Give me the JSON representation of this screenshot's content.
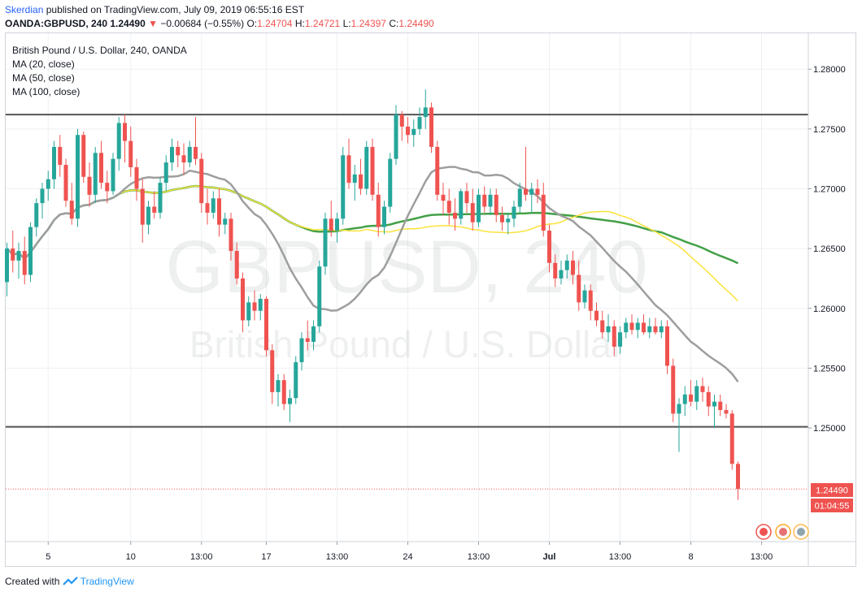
{
  "header": {
    "author": "Skerdian",
    "published": "published on TradingView.com, July 09, 2019 06:55:16 EST",
    "symbol": "OANDA:GBPUSD, 240",
    "last": "1.24490",
    "change": "−0.00684 (−0.55%)",
    "o_label": "O:",
    "o_value": "1.24704",
    "h_label": "H:",
    "h_value": "1.24721",
    "l_label": "L:",
    "l_value": "1.24397",
    "c_label": "C:",
    "c_value": "1.24490"
  },
  "legend": {
    "instrument": "British Pound / U.S. Dollar, 240, OANDA",
    "ma20": "MA (20, close)",
    "ma50": "MA (50, close)",
    "ma100": "MA (100, close)"
  },
  "watermark": {
    "line1": "GBPUSD, 240",
    "line2": "British Pound / U.S. Dollar"
  },
  "price_badge": {
    "price": "1.24490",
    "countdown": "01:04:55"
  },
  "footer": {
    "created_with": "Created with",
    "brand": "TradingView"
  },
  "colors": {
    "up": "#26a69a",
    "down": "#ef5350",
    "ma20": "#9e9e9e",
    "ma50": "#fbe23c",
    "ma100": "#43a047",
    "level": "#555555",
    "grid": "#eef0f3",
    "price_line": "#ef5350"
  },
  "chart_data": {
    "type": "candlestick",
    "instrument": "GBPUSD",
    "timeframe": "240",
    "y_ticks": [
      "1.28000",
      "1.27500",
      "1.27000",
      "1.26500",
      "1.26000",
      "1.25500",
      "1.25000"
    ],
    "ylim": [
      1.2405,
      1.283
    ],
    "x_ticks": [
      {
        "label": "5",
        "index": 7
      },
      {
        "label": "10",
        "index": 21
      },
      {
        "label": "13:00",
        "index": 33
      },
      {
        "label": "17",
        "index": 44
      },
      {
        "label": "13:00",
        "index": 56
      },
      {
        "label": "24",
        "index": 68
      },
      {
        "label": "13:00",
        "index": 80
      },
      {
        "label": "Jul",
        "index": 92
      },
      {
        "label": "13:00",
        "index": 104
      },
      {
        "label": "8",
        "index": 116
      },
      {
        "label": "13:00",
        "index": 128
      }
    ],
    "x_count": 130,
    "horizontal_levels": [
      1.2762,
      1.2501
    ],
    "last_price": 1.2449,
    "ohlc": [
      [
        1.2622,
        1.2655,
        1.261,
        1.265
      ],
      [
        1.265,
        1.2665,
        1.263,
        1.264
      ],
      [
        1.264,
        1.2655,
        1.2625,
        1.2648
      ],
      [
        1.2648,
        1.266,
        1.262,
        1.2628
      ],
      [
        1.2628,
        1.2672,
        1.2622,
        1.2668
      ],
      [
        1.2668,
        1.2692,
        1.266,
        1.2688
      ],
      [
        1.2688,
        1.2705,
        1.2675,
        1.27
      ],
      [
        1.27,
        1.2715,
        1.269,
        1.2708
      ],
      [
        1.2708,
        1.274,
        1.27,
        1.2735
      ],
      [
        1.2735,
        1.2745,
        1.271,
        1.272
      ],
      [
        1.272,
        1.2725,
        1.2685,
        1.269
      ],
      [
        1.269,
        1.2705,
        1.267,
        1.2675
      ],
      [
        1.2675,
        1.275,
        1.2668,
        1.2745
      ],
      [
        1.2745,
        1.2748,
        1.2705,
        1.271
      ],
      [
        1.271,
        1.2722,
        1.2685,
        1.2695
      ],
      [
        1.2695,
        1.2735,
        1.2688,
        1.273
      ],
      [
        1.273,
        1.274,
        1.27,
        1.2705
      ],
      [
        1.2705,
        1.2715,
        1.2688,
        1.2698
      ],
      [
        1.2698,
        1.273,
        1.2695,
        1.2725
      ],
      [
        1.2725,
        1.276,
        1.2715,
        1.2755
      ],
      [
        1.2755,
        1.2762,
        1.2722,
        1.274
      ],
      [
        1.274,
        1.2752,
        1.271,
        1.2718
      ],
      [
        1.2718,
        1.2725,
        1.269,
        1.27
      ],
      [
        1.27,
        1.2708,
        1.2655,
        1.267
      ],
      [
        1.267,
        1.269,
        1.2662,
        1.2685
      ],
      [
        1.2685,
        1.2698,
        1.2675,
        1.268
      ],
      [
        1.268,
        1.271,
        1.2675,
        1.2705
      ],
      [
        1.2705,
        1.2728,
        1.2698,
        1.2722
      ],
      [
        1.2722,
        1.2742,
        1.2715,
        1.2735
      ],
      [
        1.2735,
        1.274,
        1.2718,
        1.2728
      ],
      [
        1.2728,
        1.2738,
        1.2712,
        1.2722
      ],
      [
        1.2722,
        1.274,
        1.2718,
        1.2735
      ],
      [
        1.2735,
        1.276,
        1.272,
        1.2725
      ],
      [
        1.2725,
        1.273,
        1.268,
        1.2688
      ],
      [
        1.2688,
        1.27,
        1.267,
        1.268
      ],
      [
        1.268,
        1.2698,
        1.2675,
        1.2692
      ],
      [
        1.2692,
        1.27,
        1.266,
        1.267
      ],
      [
        1.267,
        1.268,
        1.2662,
        1.2675
      ],
      [
        1.2675,
        1.268,
        1.264,
        1.2648
      ],
      [
        1.2648,
        1.2655,
        1.262,
        1.2625
      ],
      [
        1.2625,
        1.263,
        1.258,
        1.259
      ],
      [
        1.259,
        1.261,
        1.2585,
        1.2605
      ],
      [
        1.2605,
        1.2615,
        1.259,
        1.2598
      ],
      [
        1.2598,
        1.2612,
        1.259,
        1.2608
      ],
      [
        1.2608,
        1.261,
        1.256,
        1.2565
      ],
      [
        1.2565,
        1.257,
        1.252,
        1.253
      ],
      [
        1.253,
        1.2545,
        1.2518,
        1.254
      ],
      [
        1.254,
        1.2545,
        1.2515,
        1.252
      ],
      [
        1.252,
        1.2532,
        1.2505,
        1.2525
      ],
      [
        1.2525,
        1.256,
        1.252,
        1.2555
      ],
      [
        1.2555,
        1.258,
        1.2548,
        1.2575
      ],
      [
        1.2575,
        1.259,
        1.2565,
        1.2572
      ],
      [
        1.2572,
        1.259,
        1.2565,
        1.2585
      ],
      [
        1.2585,
        1.264,
        1.258,
        1.2635
      ],
      [
        1.2635,
        1.268,
        1.2628,
        1.2675
      ],
      [
        1.2675,
        1.269,
        1.266,
        1.2665
      ],
      [
        1.2665,
        1.268,
        1.2655,
        1.2675
      ],
      [
        1.2675,
        1.2735,
        1.267,
        1.2728
      ],
      [
        1.2728,
        1.2742,
        1.27,
        1.2705
      ],
      [
        1.2705,
        1.272,
        1.269,
        1.2712
      ],
      [
        1.2712,
        1.2725,
        1.2695,
        1.27
      ],
      [
        1.27,
        1.274,
        1.2695,
        1.2735
      ],
      [
        1.2735,
        1.2742,
        1.269,
        1.2695
      ],
      [
        1.2695,
        1.2705,
        1.266,
        1.2668
      ],
      [
        1.2668,
        1.269,
        1.2662,
        1.2685
      ],
      [
        1.2685,
        1.273,
        1.268,
        1.2725
      ],
      [
        1.2725,
        1.277,
        1.272,
        1.2762
      ],
      [
        1.2762,
        1.2765,
        1.274,
        1.2752
      ],
      [
        1.2752,
        1.276,
        1.2738,
        1.2745
      ],
      [
        1.2745,
        1.2758,
        1.2735,
        1.275
      ],
      [
        1.275,
        1.2768,
        1.2745,
        1.276
      ],
      [
        1.276,
        1.2783,
        1.275,
        1.2768
      ],
      [
        1.2768,
        1.2772,
        1.273,
        1.2735
      ],
      [
        1.2735,
        1.274,
        1.269,
        1.2695
      ],
      [
        1.2695,
        1.2705,
        1.2678,
        1.269
      ],
      [
        1.269,
        1.27,
        1.267,
        1.268
      ],
      [
        1.268,
        1.2692,
        1.2665,
        1.2675
      ],
      [
        1.2675,
        1.27,
        1.267,
        1.2698
      ],
      [
        1.2698,
        1.2705,
        1.268,
        1.2688
      ],
      [
        1.2688,
        1.27,
        1.2665,
        1.2672
      ],
      [
        1.2672,
        1.27,
        1.2668,
        1.2695
      ],
      [
        1.2695,
        1.2702,
        1.268,
        1.2685
      ],
      [
        1.2685,
        1.27,
        1.2678,
        1.2695
      ],
      [
        1.2695,
        1.27,
        1.2672,
        1.2678
      ],
      [
        1.2678,
        1.2685,
        1.2665,
        1.2672
      ],
      [
        1.2672,
        1.268,
        1.2662,
        1.2675
      ],
      [
        1.2675,
        1.269,
        1.2668,
        1.2685
      ],
      [
        1.2685,
        1.2705,
        1.268,
        1.27
      ],
      [
        1.27,
        1.2735,
        1.269,
        1.2695
      ],
      [
        1.2695,
        1.2705,
        1.268,
        1.27
      ],
      [
        1.27,
        1.2708,
        1.2688,
        1.2695
      ],
      [
        1.2695,
        1.2705,
        1.266,
        1.2665
      ],
      [
        1.2665,
        1.267,
        1.263,
        1.2638
      ],
      [
        1.2638,
        1.2645,
        1.2618,
        1.2625
      ],
      [
        1.2625,
        1.264,
        1.262,
        1.2632
      ],
      [
        1.2632,
        1.2645,
        1.2625,
        1.264
      ],
      [
        1.264,
        1.2648,
        1.262,
        1.2628
      ],
      [
        1.2628,
        1.264,
        1.2598,
        1.2605
      ],
      [
        1.2605,
        1.262,
        1.26,
        1.2615
      ],
      [
        1.2615,
        1.262,
        1.259,
        1.2598
      ],
      [
        1.2598,
        1.2605,
        1.2585,
        1.259
      ],
      [
        1.259,
        1.2598,
        1.2575,
        1.258
      ],
      [
        1.258,
        1.2595,
        1.2572,
        1.2585
      ],
      [
        1.2585,
        1.259,
        1.256,
        1.2568
      ],
      [
        1.2568,
        1.2585,
        1.2562,
        1.258
      ],
      [
        1.258,
        1.2592,
        1.2575,
        1.2588
      ],
      [
        1.2588,
        1.2595,
        1.2578,
        1.2582
      ],
      [
        1.2582,
        1.2592,
        1.2575,
        1.2588
      ],
      [
        1.2588,
        1.2595,
        1.2578,
        1.258
      ],
      [
        1.258,
        1.2592,
        1.2575,
        1.2585
      ],
      [
        1.2585,
        1.2592,
        1.2578,
        1.258
      ],
      [
        1.258,
        1.259,
        1.2575,
        1.2585
      ],
      [
        1.2585,
        1.259,
        1.2545,
        1.2552
      ],
      [
        1.2552,
        1.2558,
        1.2505,
        1.2512
      ],
      [
        1.2512,
        1.2525,
        1.248,
        1.252
      ],
      [
        1.252,
        1.2535,
        1.251,
        1.2528
      ],
      [
        1.2528,
        1.254,
        1.2518,
        1.2522
      ],
      [
        1.2522,
        1.254,
        1.2515,
        1.2535
      ],
      [
        1.2535,
        1.2542,
        1.2522,
        1.253
      ],
      [
        1.253,
        1.2535,
        1.251,
        1.2518
      ],
      [
        1.2518,
        1.2528,
        1.25,
        1.2522
      ],
      [
        1.2522,
        1.2528,
        1.251,
        1.2515
      ],
      [
        1.2515,
        1.252,
        1.2508,
        1.2512
      ],
      [
        1.2512,
        1.2515,
        1.2465,
        1.247
      ],
      [
        1.247,
        1.2472,
        1.244,
        1.2449
      ]
    ]
  }
}
